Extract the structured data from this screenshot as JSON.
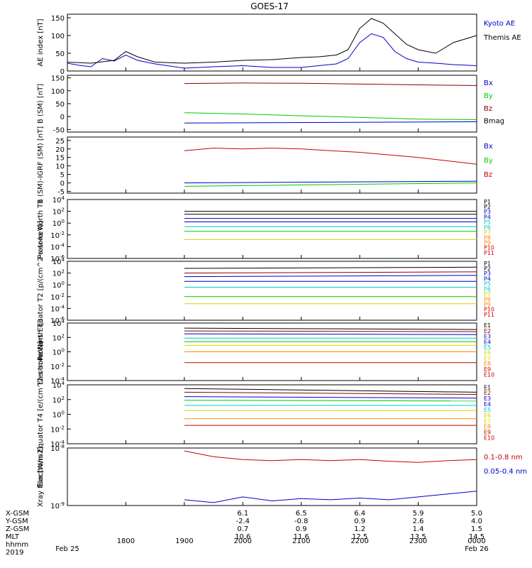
{
  "title": "GOES-17",
  "colors": {
    "black": "#000000",
    "blue": "#0000cc",
    "green": "#00cc00",
    "red": "#cc0000",
    "dark_red": "#8b0000",
    "cyan": "#00cccc",
    "orange": "#ff8c00",
    "yellow": "#d4d400"
  },
  "time_axis": {
    "tick_labels": [
      "1800",
      "1900",
      "2000",
      "2100",
      "2200",
      "2300",
      "0000"
    ],
    "tick_hours": [
      18,
      19,
      20,
      21,
      22,
      23,
      24
    ],
    "x_range_hours": [
      17.0,
      24.0
    ],
    "date_start": "Feb 25",
    "date_end": "Feb 26",
    "year": "2019"
  },
  "ephemeris": {
    "labels": [
      "X-GSM",
      "Y-GSM",
      "Z-GSM",
      "MLT",
      "hhmm",
      "2019"
    ],
    "x_gsm": [
      "6.1",
      "6.5",
      "6.4",
      "5.9",
      "5.0"
    ],
    "y_gsm": [
      "-2.4",
      "-0.8",
      "0.9",
      "2.6",
      "4.0"
    ],
    "z_gsm": [
      "0.7",
      "0.9",
      "1.2",
      "1.4",
      "1.5"
    ],
    "mlt": [
      "10.6",
      "11.6",
      "12.5",
      "13.5",
      "14.5"
    ]
  },
  "chart_data": [
    {
      "type": "line",
      "ylabel": "AE index [nT]",
      "yticks": [
        "0",
        "50",
        "100",
        "150"
      ],
      "ylim": [
        0,
        160
      ],
      "legend": [
        "Kyoto AE",
        "Themis AE"
      ],
      "series": [
        {
          "name": "Kyoto AE",
          "color": "blue",
          "x": [
            17.0,
            17.2,
            17.4,
            17.6,
            17.8,
            18.0,
            18.2,
            18.5,
            19.0,
            19.5,
            20.0,
            20.5,
            21.0,
            21.3,
            21.6,
            21.8,
            22.0,
            22.2,
            22.4,
            22.6,
            22.8,
            23.0,
            23.3,
            23.6,
            24.0
          ],
          "y": [
            22,
            16,
            12,
            35,
            28,
            45,
            30,
            20,
            8,
            12,
            15,
            10,
            10,
            15,
            20,
            35,
            80,
            105,
            95,
            55,
            35,
            25,
            22,
            18,
            15
          ]
        },
        {
          "name": "Themis AE",
          "color": "black",
          "x": [
            17.0,
            17.4,
            17.8,
            18.0,
            18.2,
            18.5,
            19.0,
            19.5,
            20.0,
            20.5,
            21.0,
            21.3,
            21.6,
            21.8,
            22.0,
            22.2,
            22.4,
            22.6,
            22.8,
            23.0,
            23.3,
            23.6,
            24.0
          ],
          "y": [
            25,
            22,
            30,
            55,
            40,
            25,
            22,
            25,
            30,
            32,
            38,
            40,
            45,
            60,
            120,
            148,
            135,
            105,
            75,
            60,
            50,
            80,
            100
          ]
        }
      ]
    },
    {
      "type": "line",
      "ylabel": "B (SM) [nT]",
      "yticks": [
        "-50",
        "0",
        "50",
        "100",
        "150"
      ],
      "ylim": [
        -60,
        160
      ],
      "legend": [
        "Bx",
        "By",
        "Bz",
        "Bmag"
      ],
      "series": [
        {
          "name": "Bx",
          "color": "blue",
          "x": [
            19.0,
            24.0
          ],
          "y": [
            -25,
            -20
          ]
        },
        {
          "name": "By",
          "color": "green",
          "x": [
            19.0,
            20.0,
            21.0,
            22.0,
            23.0,
            24.0
          ],
          "y": [
            15,
            10,
            3,
            -3,
            -10,
            -12
          ]
        },
        {
          "name": "Bz",
          "color": "dark_red",
          "x": [
            19.0,
            20.0,
            21.0,
            22.0,
            23.0,
            24.0
          ],
          "y": [
            128,
            130,
            129,
            126,
            123,
            120
          ]
        }
      ]
    },
    {
      "type": "line",
      "ylabel": "B (SM)-IGRF (SM) [nT]",
      "yticks": [
        "-5",
        "0",
        "5",
        "10",
        "15",
        "20",
        "25"
      ],
      "ylim": [
        -6,
        27
      ],
      "legend": [
        "Bx",
        "By",
        "Bz"
      ],
      "series": [
        {
          "name": "Bx",
          "color": "blue",
          "x": [
            19.0,
            24.0
          ],
          "y": [
            0,
            1
          ]
        },
        {
          "name": "By",
          "color": "green",
          "x": [
            19.0,
            24.0
          ],
          "y": [
            -2,
            0
          ]
        },
        {
          "name": "Bz",
          "color": "red",
          "x": [
            19.0,
            19.5,
            20.0,
            20.5,
            21.0,
            21.5,
            22.0,
            22.5,
            23.0,
            23.5,
            24.0
          ],
          "y": [
            19,
            20.5,
            20,
            20.5,
            20,
            19,
            18,
            16.5,
            15,
            13,
            11
          ]
        }
      ]
    },
    {
      "type": "line",
      "scale": "log",
      "ylabel": "Protons North T1",
      "yticks": [
        "10^4",
        "10^2",
        "10^0",
        "10^-2",
        "10^-4",
        "10^-6"
      ],
      "ylim_exp": [
        -6,
        4
      ],
      "legend": [
        "P1",
        "P2",
        "P3",
        "P4",
        "P5",
        "P6",
        "P7",
        "P8",
        "P9",
        "P10",
        "P11"
      ],
      "legend_colors": [
        "black",
        "black",
        "blue",
        "blue",
        "cyan",
        "cyan",
        "yellow",
        "orange",
        "orange",
        "red",
        "red"
      ],
      "series": [
        {
          "name": "P1",
          "color": "black",
          "x": [
            19.0,
            24.0
          ],
          "y_exp": [
            2.0,
            2.0
          ]
        },
        {
          "name": "P2",
          "color": "black",
          "x": [
            19.0,
            24.0
          ],
          "y_exp": [
            1.5,
            1.5
          ]
        },
        {
          "name": "P3",
          "color": "blue",
          "x": [
            19.0,
            24.0
          ],
          "y_exp": [
            0.8,
            0.8
          ]
        },
        {
          "name": "P4",
          "color": "blue",
          "x": [
            19.0,
            24.0
          ],
          "y_exp": [
            0.2,
            0.2
          ]
        },
        {
          "name": "P5",
          "color": "cyan",
          "x": [
            19.0,
            24.0
          ],
          "y_exp": [
            -0.6,
            -0.6
          ]
        },
        {
          "name": "P6",
          "color": "green",
          "x": [
            19.0,
            24.0
          ],
          "y_exp": [
            -1.4,
            -1.4
          ]
        },
        {
          "name": "P7",
          "color": "yellow",
          "x": [
            19.0,
            24.0
          ],
          "y_exp": [
            -2.8,
            -2.8
          ]
        }
      ]
    },
    {
      "type": "line",
      "scale": "log",
      "ylabel": "Protons Equator T2 [p/(cm^2-s-sr-keV)]",
      "yticks": [
        "10^4",
        "10^2",
        "10^0",
        "10^-2",
        "10^-4",
        "10^-6"
      ],
      "ylim_exp": [
        -6,
        4
      ],
      "legend": [
        "P1",
        "P2",
        "P3",
        "P4",
        "P5",
        "P6",
        "P7",
        "P8",
        "P9",
        "P10",
        "P11"
      ],
      "legend_colors": [
        "black",
        "black",
        "blue",
        "blue",
        "cyan",
        "cyan",
        "yellow",
        "orange",
        "orange",
        "red",
        "red"
      ],
      "series": [
        {
          "name": "P1",
          "color": "black",
          "x": [
            19.0,
            24.0
          ],
          "y_exp": [
            2.8,
            3.0
          ]
        },
        {
          "name": "P2",
          "color": "dark_red",
          "x": [
            19.0,
            24.0
          ],
          "y_exp": [
            2.0,
            2.2
          ]
        },
        {
          "name": "P3",
          "color": "blue",
          "x": [
            19.0,
            24.0
          ],
          "y_exp": [
            1.4,
            1.6
          ]
        },
        {
          "name": "P4",
          "color": "blue",
          "x": [
            19.0,
            24.0
          ],
          "y_exp": [
            0.6,
            0.6
          ]
        },
        {
          "name": "P5",
          "color": "cyan",
          "x": [
            19.0,
            24.0
          ],
          "y_exp": [
            -0.4,
            -0.4
          ]
        },
        {
          "name": "P6",
          "color": "green",
          "x": [
            19.0,
            24.0
          ],
          "y_exp": [
            -2.0,
            -2.0
          ]
        },
        {
          "name": "P7",
          "color": "yellow",
          "x": [
            19.0,
            24.0
          ],
          "y_exp": [
            -3.2,
            -3.2
          ]
        }
      ]
    },
    {
      "type": "line",
      "scale": "log",
      "ylabel": "Electrons North T3",
      "yticks": [
        "10^4",
        "10^2",
        "10^0",
        "10^-2",
        "10^-4"
      ],
      "ylim_exp": [
        -4,
        4
      ],
      "legend": [
        "E1",
        "E2",
        "E3",
        "E4",
        "E5",
        "E6",
        "E7",
        "E8",
        "E9",
        "E10"
      ],
      "legend_colors": [
        "black",
        "dark_red",
        "blue",
        "blue",
        "cyan",
        "yellow",
        "yellow",
        "orange",
        "red",
        "red"
      ],
      "series": [
        {
          "name": "E1",
          "color": "black",
          "x": [
            19.0,
            24.0
          ],
          "y_exp": [
            3.3,
            3.1
          ]
        },
        {
          "name": "E2",
          "color": "dark_red",
          "x": [
            19.0,
            24.0
          ],
          "y_exp": [
            2.9,
            2.8
          ]
        },
        {
          "name": "E3",
          "color": "blue",
          "x": [
            19.0,
            24.0
          ],
          "y_exp": [
            2.5,
            2.4
          ]
        },
        {
          "name": "E4",
          "color": "cyan",
          "x": [
            19.0,
            24.0
          ],
          "y_exp": [
            1.9,
            1.9
          ]
        },
        {
          "name": "E5",
          "color": "green",
          "x": [
            19.0,
            24.0
          ],
          "y_exp": [
            1.4,
            1.4
          ]
        },
        {
          "name": "E6",
          "color": "yellow",
          "x": [
            19.0,
            24.0
          ],
          "y_exp": [
            0.9,
            0.9
          ]
        },
        {
          "name": "E7",
          "color": "orange",
          "x": [
            19.0,
            24.0
          ],
          "y_exp": [
            0.0,
            0.0
          ]
        },
        {
          "name": "E8",
          "color": "red",
          "x": [
            19.0,
            24.0
          ],
          "y_exp": [
            -1.5,
            -1.5
          ]
        }
      ]
    },
    {
      "type": "line",
      "scale": "log",
      "ylabel": "Electrons Equator T4 [e/(cm^2-s-sr-keV)]",
      "yticks": [
        "10^4",
        "10^2",
        "10^0",
        "10^-2",
        "10^-4"
      ],
      "ylim_exp": [
        -4,
        4
      ],
      "legend": [
        "E1",
        "E2",
        "E3",
        "E4",
        "E5",
        "E6",
        "E7",
        "E8",
        "E9",
        "E10"
      ],
      "legend_colors": [
        "black",
        "dark_red",
        "blue",
        "blue",
        "cyan",
        "yellow",
        "yellow",
        "orange",
        "red",
        "red"
      ],
      "series": [
        {
          "name": "E1",
          "color": "black",
          "x": [
            19.0,
            24.0
          ],
          "y_exp": [
            3.5,
            3.0
          ]
        },
        {
          "name": "E2",
          "color": "dark_red",
          "x": [
            19.0,
            24.0
          ],
          "y_exp": [
            3.0,
            2.7
          ]
        },
        {
          "name": "E3",
          "color": "blue",
          "x": [
            19.0,
            24.0
          ],
          "y_exp": [
            2.4,
            2.2
          ]
        },
        {
          "name": "E4",
          "color": "green",
          "x": [
            19.0,
            24.0
          ],
          "y_exp": [
            1.9,
            1.8
          ]
        },
        {
          "name": "E5",
          "color": "cyan",
          "x": [
            19.0,
            24.0
          ],
          "y_exp": [
            1.2,
            1.2
          ]
        },
        {
          "name": "E6",
          "color": "yellow",
          "x": [
            19.0,
            24.0
          ],
          "y_exp": [
            0.5,
            0.5
          ]
        },
        {
          "name": "E7",
          "color": "orange",
          "x": [
            19.0,
            24.0
          ],
          "y_exp": [
            -0.6,
            -0.6
          ]
        },
        {
          "name": "E8",
          "color": "red",
          "x": [
            19.0,
            24.0
          ],
          "y_exp": [
            -1.5,
            -1.5
          ]
        }
      ]
    },
    {
      "type": "line",
      "scale": "log",
      "ylabel": "Xray flux [W/m2]",
      "yticks": [
        "10^-8",
        "10^-9"
      ],
      "ylim_exp": [
        -9,
        -8
      ],
      "legend": [
        "0.1-0.8 nm",
        "0.05-0.4 nm"
      ],
      "series": [
        {
          "name": "0.1-0.8 nm",
          "color": "red",
          "x": [
            19.0,
            19.5,
            20.0,
            20.5,
            21.0,
            21.5,
            22.0,
            22.5,
            23.0,
            23.5,
            24.0
          ],
          "y_exp": [
            -8.05,
            -8.15,
            -8.2,
            -8.22,
            -8.2,
            -8.22,
            -8.2,
            -8.23,
            -8.25,
            -8.22,
            -8.2
          ]
        },
        {
          "name": "0.05-0.4 nm",
          "color": "blue",
          "x": [
            19.0,
            19.5,
            20.0,
            20.5,
            21.0,
            21.5,
            22.0,
            22.5,
            23.0,
            23.5,
            24.0
          ],
          "y_exp": [
            -8.9,
            -8.95,
            -8.85,
            -8.92,
            -8.88,
            -8.9,
            -8.87,
            -8.9,
            -8.85,
            -8.8,
            -8.75
          ]
        }
      ]
    }
  ]
}
